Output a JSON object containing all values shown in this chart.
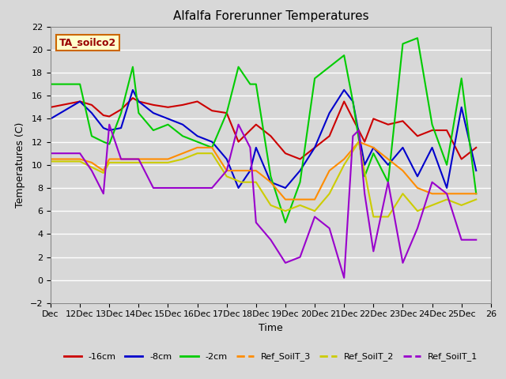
{
  "title": "Alfalfa Forerunner Temperatures",
  "xlabel": "Time",
  "ylabel": "Temperatures (C)",
  "annotation_text": "TA_soilco2",
  "ylim": [
    -2,
    22
  ],
  "yticks": [
    -2,
    0,
    2,
    4,
    6,
    8,
    10,
    12,
    14,
    16,
    18,
    20,
    22
  ],
  "xlim": [
    11,
    26
  ],
  "xtick_positions": [
    11,
    12,
    13,
    14,
    15,
    16,
    17,
    18,
    19,
    20,
    21,
    22,
    23,
    24,
    25,
    26
  ],
  "xtick_labels": [
    "Dec",
    "12Dec",
    "13Dec",
    "14Dec",
    "15Dec",
    "16Dec",
    "17Dec",
    "18Dec",
    "19Dec",
    "20Dec",
    "21Dec",
    "22Dec",
    "23Dec",
    "24Dec",
    "25Dec",
    "26"
  ],
  "fig_bg_color": "#d8d8d8",
  "plot_bg_color": "#d8d8d8",
  "grid_color": "#ffffff",
  "series": {
    "red_16cm": {
      "color": "#cc0000",
      "label": "-16cm",
      "x": [
        11.0,
        12.0,
        12.4,
        12.8,
        13.0,
        13.4,
        13.8,
        14.0,
        14.5,
        15.0,
        15.5,
        16.0,
        16.5,
        17.0,
        17.4,
        17.8,
        18.0,
        18.5,
        19.0,
        19.5,
        20.0,
        20.5,
        21.0,
        21.3,
        21.7,
        22.0,
        22.5,
        23.0,
        23.5,
        24.0,
        24.5,
        25.0,
        25.5
      ],
      "y": [
        15.0,
        15.5,
        15.2,
        14.3,
        14.2,
        14.8,
        15.8,
        15.5,
        15.2,
        15.0,
        15.2,
        15.5,
        14.7,
        14.5,
        12.0,
        13.0,
        13.5,
        12.5,
        11.0,
        10.5,
        11.5,
        12.5,
        15.5,
        14.0,
        12.0,
        14.0,
        13.5,
        13.8,
        12.5,
        13.0,
        13.0,
        10.5,
        11.5
      ]
    },
    "blue_8cm": {
      "color": "#0000cc",
      "label": "-8cm",
      "x": [
        11.0,
        12.0,
        12.4,
        12.8,
        13.0,
        13.4,
        13.8,
        14.0,
        14.5,
        15.0,
        15.5,
        16.0,
        16.5,
        17.0,
        17.4,
        17.8,
        18.0,
        18.5,
        19.0,
        19.5,
        20.0,
        20.5,
        21.0,
        21.3,
        21.7,
        22.0,
        22.5,
        23.0,
        23.5,
        24.0,
        24.5,
        25.0,
        25.5
      ],
      "y": [
        14.0,
        15.5,
        14.5,
        13.2,
        13.0,
        13.2,
        16.5,
        15.5,
        14.5,
        14.0,
        13.5,
        12.5,
        12.0,
        10.5,
        8.0,
        9.5,
        11.5,
        8.5,
        8.0,
        9.5,
        11.5,
        14.5,
        16.5,
        15.5,
        10.0,
        11.5,
        10.0,
        11.5,
        9.0,
        11.5,
        8.0,
        15.0,
        9.5
      ]
    },
    "green_2cm": {
      "color": "#00cc00",
      "label": "-2cm",
      "x": [
        11.0,
        12.0,
        12.4,
        12.8,
        13.0,
        13.4,
        13.8,
        14.0,
        14.5,
        15.0,
        15.5,
        16.0,
        16.5,
        17.0,
        17.4,
        17.8,
        18.0,
        18.5,
        19.0,
        19.5,
        20.0,
        20.5,
        21.0,
        21.3,
        21.7,
        22.0,
        22.5,
        23.0,
        23.5,
        24.0,
        24.5,
        25.0,
        25.5
      ],
      "y": [
        17.0,
        17.0,
        12.5,
        12.0,
        11.8,
        14.5,
        18.5,
        14.5,
        13.0,
        13.5,
        12.5,
        12.0,
        11.5,
        14.5,
        18.5,
        17.0,
        17.0,
        9.0,
        5.0,
        8.5,
        17.5,
        18.5,
        19.5,
        15.5,
        9.0,
        11.0,
        8.5,
        20.5,
        21.0,
        13.5,
        10.0,
        17.5,
        7.5
      ]
    },
    "orange_ref3": {
      "color": "#ff8c00",
      "label": "Ref_SoilT_3",
      "x": [
        11.0,
        12.0,
        12.4,
        12.8,
        13.0,
        13.5,
        14.0,
        14.5,
        15.0,
        15.5,
        16.0,
        16.5,
        17.0,
        17.5,
        18.0,
        18.5,
        19.0,
        19.5,
        20.0,
        20.5,
        21.0,
        21.5,
        22.0,
        22.5,
        23.0,
        23.5,
        24.0,
        24.5,
        25.0,
        25.5
      ],
      "y": [
        10.5,
        10.5,
        10.2,
        9.5,
        10.5,
        10.5,
        10.5,
        10.5,
        10.5,
        11.0,
        11.5,
        11.5,
        9.5,
        9.5,
        9.5,
        8.5,
        7.0,
        7.0,
        7.0,
        9.5,
        10.5,
        12.0,
        11.5,
        10.5,
        9.5,
        8.0,
        7.5,
        7.5,
        7.5,
        7.5
      ]
    },
    "yellow_ref2": {
      "color": "#cccc00",
      "label": "Ref_SoilT_2",
      "x": [
        11.0,
        12.0,
        12.4,
        12.8,
        13.0,
        13.5,
        14.0,
        14.5,
        15.0,
        15.5,
        16.0,
        16.5,
        17.0,
        17.5,
        18.0,
        18.5,
        19.0,
        19.5,
        20.0,
        20.5,
        21.0,
        21.5,
        22.0,
        22.5,
        23.0,
        23.5,
        24.0,
        24.5,
        25.0,
        25.5
      ],
      "y": [
        10.3,
        10.3,
        9.8,
        9.3,
        10.2,
        10.2,
        10.2,
        10.2,
        10.2,
        10.5,
        11.0,
        11.0,
        9.0,
        8.5,
        8.5,
        6.5,
        6.0,
        6.5,
        6.0,
        7.5,
        10.0,
        12.0,
        5.5,
        5.5,
        7.5,
        6.0,
        6.5,
        7.0,
        6.5,
        7.0
      ]
    },
    "purple_ref1": {
      "color": "#9900cc",
      "label": "Ref_SoilT_1",
      "x": [
        11.0,
        12.0,
        12.4,
        12.8,
        13.0,
        13.4,
        13.8,
        14.0,
        14.5,
        15.0,
        15.5,
        16.0,
        16.5,
        17.0,
        17.4,
        17.8,
        18.0,
        18.5,
        19.0,
        19.5,
        20.0,
        20.5,
        21.0,
        21.3,
        21.5,
        21.7,
        22.0,
        22.5,
        23.0,
        23.5,
        24.0,
        24.5,
        25.0,
        25.5
      ],
      "y": [
        11.0,
        11.0,
        9.5,
        7.5,
        13.5,
        10.5,
        10.5,
        10.5,
        8.0,
        8.0,
        8.0,
        8.0,
        8.0,
        9.5,
        13.5,
        11.5,
        5.0,
        3.5,
        1.5,
        2.0,
        5.5,
        4.5,
        0.2,
        12.5,
        13.0,
        7.5,
        2.5,
        8.5,
        1.5,
        4.5,
        8.5,
        7.5,
        3.5,
        3.5
      ]
    }
  }
}
